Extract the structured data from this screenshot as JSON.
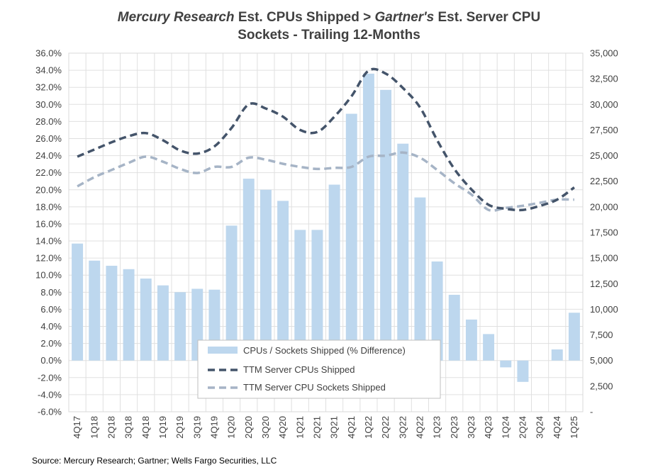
{
  "title": {
    "part1_italic": "Mercury Research",
    "part2": " Est. CPUs Shipped > ",
    "part3_italic": "Gartner's",
    "part4": " Est. Server CPU",
    "line2": "Sockets - Trailing 12-Months"
  },
  "source": "Source: Mercury Research; Gartner; Wells Fargo Securities, LLC",
  "colors": {
    "bars": "#bdd7ee",
    "cpus_line": "#44546a",
    "sockets_line": "#a6b4c6",
    "grid": "#e0e0e0"
  },
  "chart_data": {
    "type": "bar+line",
    "title": "Mercury Research Est. CPUs Shipped > Gartner's Est. Server CPU Sockets - Trailing 12-Months",
    "categories": [
      "4Q17",
      "1Q18",
      "2Q18",
      "3Q18",
      "4Q18",
      "1Q19",
      "2Q19",
      "3Q19",
      "4Q19",
      "1Q20",
      "2Q20",
      "3Q20",
      "4Q20",
      "1Q21",
      "2Q21",
      "3Q21",
      "4Q21",
      "1Q22",
      "2Q22",
      "3Q22",
      "4Q22",
      "1Q23",
      "2Q23",
      "3Q23",
      "4Q23",
      "1Q24",
      "2Q24",
      "3Q24",
      "4Q24",
      "1Q25"
    ],
    "y_left": {
      "min": -6,
      "max": 36,
      "step": 2,
      "tick_labels": [
        "-6.0%",
        "-4.0%",
        "-2.0%",
        "0.0%",
        "2.0%",
        "4.0%",
        "6.0%",
        "8.0%",
        "10.0%",
        "12.0%",
        "14.0%",
        "16.0%",
        "18.0%",
        "20.0%",
        "22.0%",
        "24.0%",
        "26.0%",
        "28.0%",
        "30.0%",
        "32.0%",
        "34.0%",
        "36.0%"
      ]
    },
    "y_right": {
      "min": 0,
      "max": 35000,
      "step": 2500,
      "tick_labels": [
        "-",
        "2,500",
        "5,000",
        "7,500",
        "10,000",
        "12,500",
        "15,000",
        "17,500",
        "20,000",
        "22,500",
        "25,000",
        "27,500",
        "30,000",
        "32,500",
        "35,000"
      ]
    },
    "series": [
      {
        "name": "CPUs / Sockets Shipped (% Difference)",
        "type": "bar",
        "axis": "left",
        "values": [
          13.7,
          11.7,
          11.1,
          10.7,
          9.6,
          8.8,
          8.0,
          8.4,
          8.3,
          15.8,
          21.3,
          20.0,
          18.7,
          15.3,
          15.3,
          20.6,
          28.9,
          33.6,
          31.7,
          25.4,
          19.1,
          11.6,
          7.7,
          4.8,
          3.1,
          -0.8,
          -2.5,
          0.0,
          1.3,
          5.6
        ]
      },
      {
        "name": "TTM Server CPUs Shipped",
        "type": "line",
        "style": "dashed",
        "axis": "right",
        "values": [
          24900,
          25600,
          26300,
          26900,
          27200,
          26500,
          25500,
          25200,
          25900,
          27700,
          30000,
          29600,
          28800,
          27500,
          27300,
          28800,
          30800,
          33300,
          33000,
          31600,
          29700,
          26500,
          23700,
          21700,
          20200,
          19800,
          19700,
          20100,
          20700,
          21900
        ]
      },
      {
        "name": "TTM Server CPU Sockets Shipped",
        "type": "line",
        "style": "dashed",
        "axis": "right",
        "values": [
          22000,
          22900,
          23600,
          24300,
          24900,
          24400,
          23700,
          23300,
          23900,
          23900,
          24800,
          24600,
          24200,
          23900,
          23700,
          23800,
          23900,
          24900,
          25000,
          25300,
          24800,
          23600,
          22300,
          21200,
          19700,
          19900,
          20100,
          20400,
          20700,
          20700
        ]
      }
    ],
    "legend": {
      "position": "bottom-center",
      "entries": [
        "CPUs / Sockets Shipped (% Difference)",
        "TTM Server CPUs Shipped",
        "TTM Server CPU Sockets Shipped"
      ]
    }
  }
}
